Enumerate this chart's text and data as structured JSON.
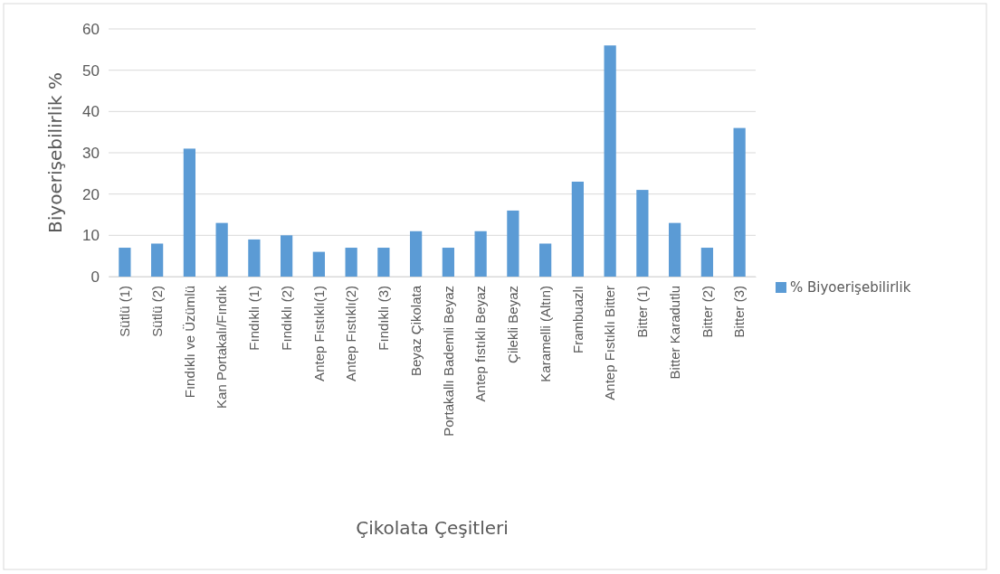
{
  "chart_data": {
    "type": "bar",
    "xlabel": "Çikolata Çeşitleri",
    "ylabel": "Biyoerişebilirlik  %",
    "categories": [
      "Sütlü (1)",
      "Sütlü (2)",
      "Fındıklı ve Üzümlü",
      "Kan Portakalı/Fındık",
      "Fındıklı (1)",
      "Fındıklı (2)",
      "Antep Fıstıklı(1)",
      "Antep Fıstıklı(2)",
      "Fındıklı (3)",
      "Beyaz Çikolata",
      "Portakallı Bademli Beyaz",
      "Antep fıstıklı Beyaz",
      "Çilekli Beyaz",
      "Karamelli (Altın)",
      "Frambuazlı",
      "Antep Fıstıklı Bitter",
      "Bitter (1)",
      "Bitter Karadutlu",
      "Bitter (2)",
      "Bitter (3)"
    ],
    "series": [
      {
        "name": "% Biyoerişebilirlik",
        "color": "#5b9bd5",
        "values": [
          7,
          8,
          31,
          13,
          9,
          10,
          6,
          7,
          7,
          11,
          7,
          11,
          16,
          8,
          23,
          56,
          21,
          13,
          7,
          36
        ]
      }
    ],
    "ylim": [
      0,
      60
    ],
    "yticks": [
      0,
      10,
      20,
      30,
      40,
      50,
      60
    ],
    "grid": "y",
    "legend": "right"
  }
}
